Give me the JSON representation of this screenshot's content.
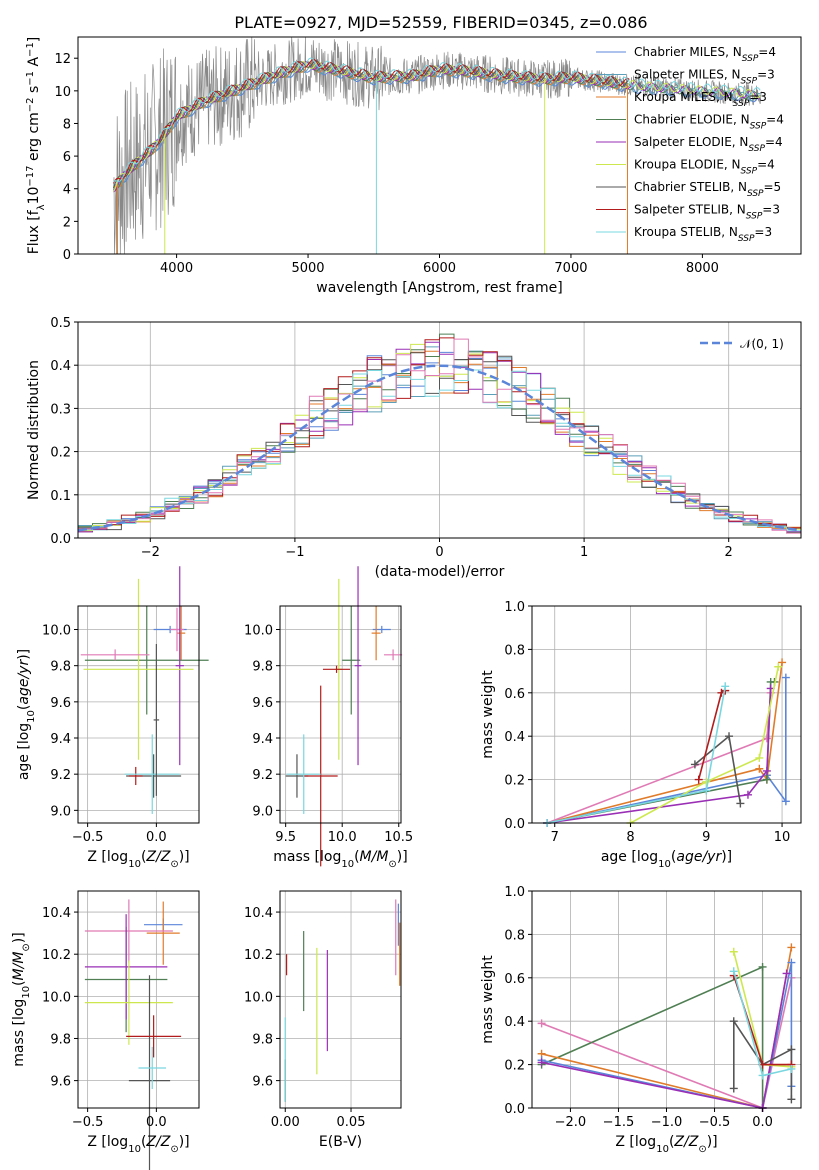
{
  "title": "PLATE=0927, MJD=52559, FIBERID=0345, z=0.086",
  "colors": {
    "chabrier_miles": "#5b85d9",
    "salpeter_miles": "#5c9fb8",
    "kroupa_miles": "#e07b2a",
    "chabrier_elodie": "#4f7f53",
    "salpeter_elodie": "#9a2fb5",
    "kroupa_elodie": "#cde84f",
    "chabrier_stelib": "#555555",
    "salpeter_stelib": "#b21c1c",
    "kroupa_stelib": "#7ad7e0",
    "normal": "#5b85d9",
    "pink": "#e07ab5",
    "grey": "#888888"
  },
  "chart_data": [
    {
      "id": "spectrum",
      "type": "line",
      "title": "PLATE=0927, MJD=52559, FIBERID=0345, z=0.086",
      "xlabel": "wavelength [Angstrom, rest frame]",
      "ylabel": "Flux [f_λ10^-17 erg cm^-2 s^-1 A^-1]",
      "xlim": [
        3250,
        8750
      ],
      "ylim": [
        0,
        13.3
      ],
      "xticks": [
        "4000",
        "5000",
        "6000",
        "7000",
        "8000"
      ],
      "yticks": [
        "0",
        "2",
        "4",
        "6",
        "8",
        "10",
        "12"
      ],
      "series": [
        {
          "name": "Chabrier MILES, N_SSP=4"
        },
        {
          "name": "Salpeter MILES, N_SSP=3"
        },
        {
          "name": "Kroupa MILES, N_SSP=3"
        },
        {
          "name": "Chabrier ELODIE, N_SSP=4"
        },
        {
          "name": "Salpeter ELODIE, N_SSP=4"
        },
        {
          "name": "Kroupa ELODIE, N_SSP=4"
        },
        {
          "name": "Chabrier STELIB, N_SSP=5"
        },
        {
          "name": "Salpeter STELIB, N_SSP=3"
        },
        {
          "name": "Kroupa STELIB, N_SSP=3"
        }
      ],
      "model_shape": {
        "x": [
          3520,
          3600,
          3700,
          3800,
          3900,
          4000,
          4200,
          4400,
          4600,
          4800,
          5000,
          5200,
          5500,
          5800,
          6000,
          6200,
          6500,
          6800,
          7000,
          7200,
          7500
        ],
        "y": [
          4.0,
          4.8,
          5.6,
          6.3,
          7.2,
          8.4,
          9.3,
          9.9,
          10.5,
          11.1,
          11.6,
          11.3,
          10.8,
          10.9,
          11.3,
          11.2,
          10.9,
          10.7,
          10.8,
          10.6,
          10.3
        ]
      }
    },
    {
      "id": "residuals",
      "type": "bar",
      "xlabel": "(data-model)/error",
      "ylabel": "Normed distribution",
      "xlim": [
        -2.5,
        2.5
      ],
      "ylim": [
        0,
        0.5
      ],
      "xticks": [
        "−2",
        "−1",
        "0",
        "1",
        "2"
      ],
      "yticks": [
        "0.0",
        "0.1",
        "0.2",
        "0.3",
        "0.4",
        "0.5"
      ],
      "legend": "N(0, 1)",
      "bin_width": 0.1,
      "bin_start": -2.5,
      "values_base": [
        0.025,
        0.03,
        0.035,
        0.04,
        0.05,
        0.06,
        0.065,
        0.07,
        0.08,
        0.09,
        0.1,
        0.11,
        0.13,
        0.145,
        0.16,
        0.18,
        0.2,
        0.22,
        0.24,
        0.27,
        0.29,
        0.31,
        0.33,
        0.35,
        0.36,
        0.38,
        0.39,
        0.41,
        0.41,
        0.42,
        0.42,
        0.41,
        0.41,
        0.4,
        0.4,
        0.39,
        0.37,
        0.35,
        0.34,
        0.32,
        0.29,
        0.27,
        0.25,
        0.23,
        0.21,
        0.19,
        0.17,
        0.15,
        0.13,
        0.12,
        0.1,
        0.09,
        0.08,
        0.07,
        0.065,
        0.06,
        0.05,
        0.045,
        0.04,
        0.035,
        0.03,
        0.028,
        0.025,
        0.022,
        0.02,
        0.018,
        0.016,
        0.015,
        0.014,
        0.013,
        0.012,
        0.011,
        0.01,
        0.009,
        0.008,
        0.007,
        0.006,
        0.005,
        0.004,
        0.003,
        0.002,
        0.002,
        0.001,
        0.001,
        0.001,
        0.001,
        0.001,
        0.001,
        0.001,
        0.001,
        0.001,
        0.001,
        0.001,
        0.001,
        0.001,
        0.001,
        0.001,
        0.001,
        0.001,
        0.001
      ]
    },
    {
      "id": "age_vs_Z",
      "type": "scatter",
      "xlabel": "Z [log10(Z/Z⊙)]",
      "ylabel": "age [log10(age/yr)]",
      "xlim": [
        -0.57,
        0.31
      ],
      "ylim": [
        8.93,
        10.13
      ],
      "xticks": [
        "−0.5",
        "0.0"
      ],
      "xtick_values": [
        -0.5,
        0.0
      ],
      "yticks": [
        "9.0",
        "9.2",
        "9.4",
        "9.6",
        "9.8",
        "10.0"
      ],
      "ytick_values": [
        9.0,
        9.2,
        9.4,
        9.6,
        9.8,
        10.0
      ],
      "points": [
        {
          "c": "chabrier_miles",
          "x": 0.1,
          "y": 10.0,
          "xe": 0.12,
          "ye": 0.02
        },
        {
          "c": "kroupa_miles",
          "x": 0.18,
          "y": 9.98,
          "xe": 0.03,
          "ye": 0.15
        },
        {
          "c": "pink",
          "x": 0.15,
          "y": 10.0,
          "xe": 0.05,
          "ye": 0.12
        },
        {
          "c": "chabrier_elodie",
          "x": -0.07,
          "y": 9.83,
          "xe": 0.45,
          "ye": 0.3
        },
        {
          "c": "salpeter_elodie",
          "x": 0.17,
          "y": 9.8,
          "xe": 0.03,
          "ye": 0.55
        },
        {
          "c": "kroupa_elodie",
          "x": -0.13,
          "y": 9.78,
          "xe": 0.4,
          "ye": 0.5
        },
        {
          "c": "chabrier_stelib",
          "x": -0.02,
          "y": 9.19,
          "xe": 0.2,
          "ye": 0.12
        },
        {
          "c": "salpeter_stelib",
          "x": -0.15,
          "y": 9.19,
          "xe": 0.05,
          "ye": 0.05
        },
        {
          "c": "kroupa_stelib",
          "x": -0.03,
          "y": 9.2,
          "xe": 0.2,
          "ye": 0.22
        },
        {
          "c": "pink",
          "x": -0.3,
          "y": 9.86,
          "xe": 0.25,
          "ye": 0.03
        },
        {
          "c": "chabrier_stelib",
          "x": 0.0,
          "y": 9.5,
          "xe": 0.02,
          "ye": 0.42
        }
      ]
    },
    {
      "id": "age_vs_mass",
      "type": "scatter",
      "xlabel": "mass [log10(M/M⊙)]",
      "xlim": [
        9.45,
        10.52
      ],
      "ylim": [
        8.93,
        10.13
      ],
      "xticks": [
        "9.5",
        "10.0",
        "10.5"
      ],
      "xtick_values": [
        9.5,
        10.0,
        10.5
      ],
      "yticks": [
        "9.0",
        "9.2",
        "9.4",
        "9.6",
        "9.8",
        "10.0"
      ],
      "ytick_values": [
        9.0,
        9.2,
        9.4,
        9.6,
        9.8,
        10.0
      ],
      "points": [
        {
          "c": "chabrier_miles",
          "x": 10.35,
          "y": 10.0,
          "xe": 0.08,
          "ye": 0.02
        },
        {
          "c": "kroupa_miles",
          "x": 10.3,
          "y": 9.98,
          "xe": 0.04,
          "ye": 0.15
        },
        {
          "c": "pink",
          "x": 10.45,
          "y": 9.86,
          "xe": 0.08,
          "ye": 0.03
        },
        {
          "c": "chabrier_elodie",
          "x": 10.08,
          "y": 9.83,
          "xe": 0.08,
          "ye": 0.3
        },
        {
          "c": "salpeter_elodie",
          "x": 10.14,
          "y": 9.8,
          "xe": 0.03,
          "ye": 0.55
        },
        {
          "c": "kroupa_elodie",
          "x": 9.97,
          "y": 9.78,
          "xe": 0.03,
          "ye": 0.5
        },
        {
          "c": "chabrier_stelib",
          "x": 9.6,
          "y": 9.19,
          "xe": 0.1,
          "ye": 0.12
        },
        {
          "c": "salpeter_stelib",
          "x": 9.81,
          "y": 9.19,
          "xe": 0.15,
          "ye": 0.5
        },
        {
          "c": "kroupa_stelib",
          "x": 9.66,
          "y": 9.2,
          "xe": 0.15,
          "ye": 0.22
        },
        {
          "c": "salpeter_stelib",
          "x": 9.95,
          "y": 9.78,
          "xe": 0.12,
          "ye": 0.02
        }
      ]
    },
    {
      "id": "weight_vs_age",
      "type": "line",
      "xlabel": "age [log10(age/yr)]",
      "ylabel": "mass weight",
      "xlim": [
        6.7,
        10.25
      ],
      "ylim": [
        0,
        1.0
      ],
      "xticks": [
        "7",
        "8",
        "9",
        "10"
      ],
      "xtick_values": [
        7,
        8,
        9,
        10
      ],
      "yticks": [
        "0.0",
        "0.2",
        "0.4",
        "0.6",
        "0.8",
        "1.0"
      ],
      "ytick_values": [
        0.0,
        0.2,
        0.4,
        0.6,
        0.8,
        1.0
      ],
      "series": [
        {
          "c": "chabrier_miles",
          "x": [
            6.9,
            9.8,
            10.05,
            10.05
          ],
          "y": [
            0.0,
            0.22,
            0.1,
            0.67
          ]
        },
        {
          "c": "kroupa_miles",
          "x": [
            6.9,
            9.7,
            9.8,
            10.0
          ],
          "y": [
            0.0,
            0.25,
            0.2,
            0.74
          ]
        },
        {
          "c": "pink",
          "x": [
            6.9,
            9.8,
            9.85
          ],
          "y": [
            0.0,
            0.39,
            0.6
          ]
        },
        {
          "c": "chabrier_elodie",
          "x": [
            6.9,
            9.8,
            9.85,
            9.9
          ],
          "y": [
            0.0,
            0.2,
            0.65,
            0.65
          ]
        },
        {
          "c": "salpeter_elodie",
          "x": [
            6.9,
            9.55,
            9.8,
            9.85
          ],
          "y": [
            0.0,
            0.13,
            0.24,
            0.62
          ]
        },
        {
          "c": "kroupa_elodie",
          "x": [
            8.0,
            9.0,
            9.7,
            9.95
          ],
          "y": [
            0.0,
            0.19,
            0.3,
            0.72
          ]
        },
        {
          "c": "chabrier_stelib",
          "x": [
            8.85,
            9.3,
            9.45
          ],
          "y": [
            0.27,
            0.4,
            0.09
          ]
        },
        {
          "c": "salpeter_stelib",
          "x": [
            8.9,
            9.2,
            9.25
          ],
          "y": [
            0.2,
            0.6,
            0.61
          ]
        },
        {
          "c": "kroupa_stelib",
          "x": [
            6.9,
            9.0,
            9.25
          ],
          "y": [
            0.0,
            0.15,
            0.63
          ]
        }
      ]
    },
    {
      "id": "mass_vs_Z",
      "type": "scatter",
      "xlabel": "Z [log10(Z/Z⊙)]",
      "ylabel": "mass [log10(M/M⊙)]",
      "xlim": [
        -0.57,
        0.31
      ],
      "ylim": [
        9.47,
        10.5
      ],
      "xticks": [
        "−0.5",
        "0.0"
      ],
      "xtick_values": [
        -0.5,
        0.0
      ],
      "yticks": [
        "9.6",
        "9.8",
        "10.0",
        "10.2",
        "10.4"
      ],
      "ytick_values": [
        9.6,
        9.8,
        10.0,
        10.2,
        10.4
      ],
      "points": [
        {
          "c": "chabrier_miles",
          "x": 0.05,
          "y": 10.34,
          "xe": 0.14,
          "ye": 0.03
        },
        {
          "c": "kroupa_miles",
          "x": 0.05,
          "y": 10.3,
          "xe": 0.12,
          "ye": 0.15
        },
        {
          "c": "pink",
          "x": -0.2,
          "y": 10.31,
          "xe": 0.32,
          "ye": 0.15
        },
        {
          "c": "chabrier_elodie",
          "x": -0.22,
          "y": 10.08,
          "xe": 0.3,
          "ye": 0.25
        },
        {
          "c": "salpeter_elodie",
          "x": -0.22,
          "y": 10.14,
          "xe": 0.3,
          "ye": 0.25
        },
        {
          "c": "kroupa_elodie",
          "x": -0.2,
          "y": 9.97,
          "xe": 0.32,
          "ye": 0.2
        },
        {
          "c": "chabrier_stelib",
          "x": -0.05,
          "y": 9.6,
          "xe": 0.15,
          "ye": 0.5
        },
        {
          "c": "salpeter_stelib",
          "x": -0.02,
          "y": 9.81,
          "xe": 0.2,
          "ye": 0.1
        },
        {
          "c": "kroupa_stelib",
          "x": -0.03,
          "y": 9.66,
          "xe": 0.1,
          "ye": 0.1
        }
      ]
    },
    {
      "id": "mass_vs_ebv",
      "type": "scatter",
      "xlabel": "E(B-V)",
      "xlim": [
        -0.004,
        0.088
      ],
      "ylim": [
        9.47,
        10.5
      ],
      "xticks": [
        "0.00",
        "0.05"
      ],
      "xtick_values": [
        0.0,
        0.05
      ],
      "yticks": [
        "9.6",
        "9.8",
        "10.0",
        "10.2",
        "10.4"
      ],
      "ytick_values": [
        9.6,
        9.8,
        10.0,
        10.2,
        10.4
      ],
      "points": [
        {
          "c": "chabrier_miles",
          "x": 0.086,
          "y": 10.34,
          "xe": 0.0,
          "ye": 0.1
        },
        {
          "c": "kroupa_miles",
          "x": 0.087,
          "y": 10.2,
          "xe": 0.0,
          "ye": 0.15
        },
        {
          "c": "pink",
          "x": 0.084,
          "y": 10.28,
          "xe": 0.0,
          "ye": 0.18
        },
        {
          "c": "chabrier_elodie",
          "x": 0.014,
          "y": 10.12,
          "xe": 0.0,
          "ye": 0.19
        },
        {
          "c": "salpeter_elodie",
          "x": 0.032,
          "y": 9.98,
          "xe": 0.0,
          "ye": 0.24
        },
        {
          "c": "kroupa_elodie",
          "x": 0.024,
          "y": 9.93,
          "xe": 0.0,
          "ye": 0.3
        },
        {
          "c": "chabrier_stelib",
          "x": 0.0,
          "y": 9.6,
          "xe": 0.0,
          "ye": 0.1
        },
        {
          "c": "salpeter_stelib",
          "x": 0.001,
          "y": 10.15,
          "xe": 0.0,
          "ye": 0.05
        },
        {
          "c": "kroupa_stelib",
          "x": 0.0,
          "y": 9.7,
          "xe": 0.0,
          "ye": 0.2
        }
      ]
    },
    {
      "id": "weight_vs_Z",
      "type": "line",
      "xlabel": "Z [log10(Z/Z⊙)]",
      "ylabel": "mass weight",
      "xlim": [
        -2.4,
        0.4
      ],
      "ylim": [
        0,
        1.0
      ],
      "xticks": [
        "−2.0",
        "−1.5",
        "−1.0",
        "−0.5",
        "0.0"
      ],
      "xtick_values": [
        -2.0,
        -1.5,
        -1.0,
        -0.5,
        0.0
      ],
      "yticks": [
        "0.0",
        "0.2",
        "0.4",
        "0.6",
        "0.8",
        "1.0"
      ],
      "ytick_values": [
        0.0,
        0.2,
        0.4,
        0.6,
        0.8,
        1.0
      ],
      "series": [
        {
          "c": "pink",
          "x": [
            -2.3,
            0.0,
            0.3
          ],
          "y": [
            0.39,
            0.0,
            0.6
          ]
        },
        {
          "c": "chabrier_elodie",
          "x": [
            -2.3,
            0.0,
            0.0
          ],
          "y": [
            0.2,
            0.65,
            0.0
          ]
        },
        {
          "c": "kroupa_miles",
          "x": [
            -2.3,
            0.0,
            0.3
          ],
          "y": [
            0.25,
            0.0,
            0.74
          ]
        },
        {
          "c": "chabrier_miles",
          "x": [
            -2.3,
            0.0,
            0.3,
            0.3
          ],
          "y": [
            0.22,
            0.0,
            0.67,
            0.1
          ]
        },
        {
          "c": "salpeter_elodie",
          "x": [
            -2.3,
            0.0,
            0.25
          ],
          "y": [
            0.21,
            0.0,
            0.62
          ]
        },
        {
          "c": "kroupa_elodie",
          "x": [
            -0.3,
            0.0,
            0.3
          ],
          "y": [
            0.72,
            0.2,
            0.19
          ]
        },
        {
          "c": "chabrier_stelib",
          "x": [
            -0.3,
            -0.3,
            0.0,
            0.3,
            0.3
          ],
          "y": [
            0.09,
            0.4,
            0.2,
            0.27,
            0.04
          ]
        },
        {
          "c": "salpeter_stelib",
          "x": [
            -0.3,
            0.0,
            0.3
          ],
          "y": [
            0.61,
            0.2,
            0.2
          ]
        },
        {
          "c": "kroupa_stelib",
          "x": [
            -0.3,
            0.0,
            0.3
          ],
          "y": [
            0.63,
            0.15,
            0.18
          ]
        }
      ]
    }
  ]
}
